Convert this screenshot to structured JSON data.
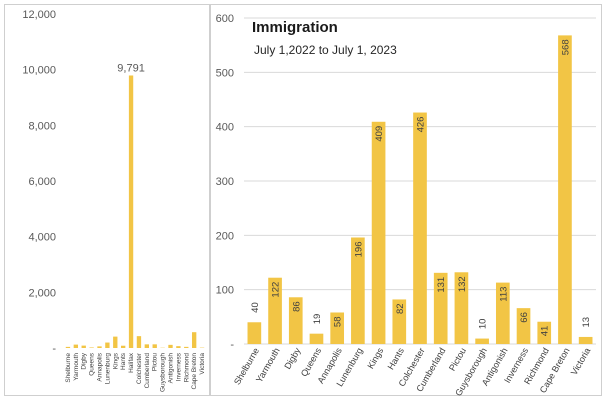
{
  "chart_data": [
    {
      "type": "bar",
      "categories": [
        "Shelburne",
        "Yarmouth",
        "Digby",
        "Queens",
        "Annapolis",
        "Lunenburg",
        "Kings",
        "Hants",
        "Halifax",
        "Colchester",
        "Cumberland",
        "Pictou",
        "Guysborough",
        "Antigonish",
        "Inverness",
        "Richmond",
        "Cape Breton",
        "Victoria"
      ],
      "values": [
        40,
        122,
        86,
        19,
        58,
        196,
        409,
        82,
        9791,
        426,
        131,
        132,
        10,
        113,
        66,
        41,
        568,
        13
      ],
      "yticks": [
        "-",
        "2,000",
        "4,000",
        "6,000",
        "8,000",
        "10,000",
        "12,000"
      ],
      "ylim": [
        0,
        12000
      ],
      "data_label": {
        "category": "Halifax",
        "text": "9,791"
      },
      "color": "#f2c545"
    },
    {
      "type": "bar",
      "title": "Immigration",
      "subtitle": "July 1,2022 to July 1, 2023",
      "categories": [
        "Shelburne",
        "Yarmouth",
        "Digby",
        "Queens",
        "Annapolis",
        "Lunenburg",
        "Kings",
        "Hants",
        "Colchester",
        "Cumberland",
        "Pictou",
        "Guysborough",
        "Antigonish",
        "Inverness",
        "Richmond",
        "Cape Breton",
        "Victoria"
      ],
      "values": [
        40,
        122,
        86,
        19,
        58,
        196,
        409,
        82,
        426,
        131,
        132,
        10,
        113,
        66,
        41,
        568,
        13
      ],
      "yticks": [
        "-",
        "100",
        "200",
        "300",
        "400",
        "500",
        "600"
      ],
      "ylim": [
        0,
        600
      ],
      "color": "#f2c545"
    }
  ]
}
